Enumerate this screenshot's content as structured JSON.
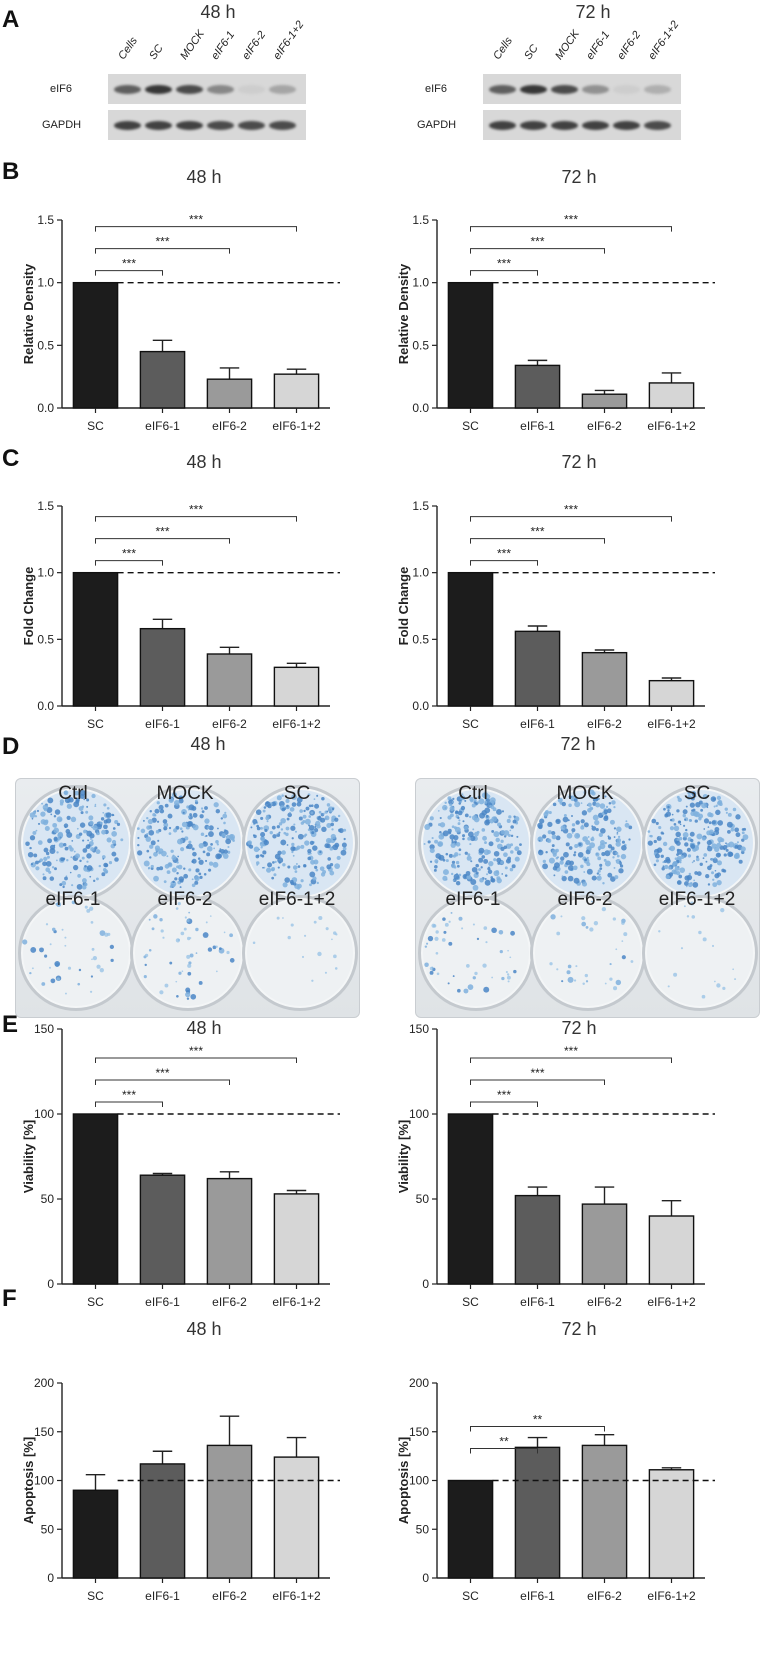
{
  "panel_labels": [
    "A",
    "B",
    "C",
    "D",
    "E",
    "F"
  ],
  "blots": [
    {
      "time": "48 h",
      "lanes": [
        "Cells",
        "SC",
        "MOCK",
        "eIF6-1",
        "eIF6-2",
        "eIF6-1+2"
      ],
      "rows": [
        {
          "label": "eIF6",
          "intensity": [
            0.7,
            0.9,
            0.8,
            0.5,
            0.15,
            0.35
          ]
        },
        {
          "label": "GAPDH",
          "intensity": [
            0.85,
            0.85,
            0.85,
            0.8,
            0.8,
            0.8
          ]
        }
      ]
    },
    {
      "time": "72 h",
      "lanes": [
        "Cells",
        "SC",
        "MOCK",
        "eIF6-1",
        "eIF6-2",
        "eIF6-1+2"
      ],
      "rows": [
        {
          "label": "eIF6",
          "intensity": [
            0.7,
            0.9,
            0.8,
            0.45,
            0.15,
            0.3
          ]
        },
        {
          "label": "GAPDH",
          "intensity": [
            0.85,
            0.85,
            0.85,
            0.85,
            0.85,
            0.8
          ]
        }
      ]
    }
  ],
  "plates": [
    {
      "time": "48 h",
      "wells": [
        "Ctrl",
        "MOCK",
        "SC",
        "eIF6-1",
        "eIF6-2",
        "eIF6-1+2"
      ],
      "colony_density": [
        0.8,
        0.75,
        0.9,
        0.08,
        0.12,
        0.0
      ]
    },
    {
      "time": "72 h",
      "wells": [
        "Ctrl",
        "MOCK",
        "SC",
        "eIF6-1",
        "eIF6-2",
        "eIF6-1+2"
      ],
      "colony_density": [
        0.95,
        0.8,
        0.95,
        0.1,
        0.05,
        0.0
      ]
    }
  ],
  "chart_data": [
    {
      "id": "B-48",
      "type": "bar",
      "title": "48 h",
      "ylabel": "Relative Density",
      "categories": [
        "SC",
        "eIF6-1",
        "eIF6-2",
        "eIF6-1+2"
      ],
      "values": [
        1.0,
        0.45,
        0.23,
        0.27
      ],
      "errors": [
        0,
        0.09,
        0.09,
        0.04
      ],
      "ylim": [
        0,
        1.5
      ],
      "yticks": [
        "0.0",
        "0.5",
        "1.0",
        "1.5"
      ],
      "yticks_values": [
        0,
        0.5,
        1.0,
        1.5
      ],
      "reference_line": 1.0,
      "colors": [
        "#1c1c1c",
        "#5c5c5c",
        "#9a9a9a",
        "#d6d6d6"
      ],
      "significance": [
        {
          "from": 0,
          "to": 1,
          "label": "***"
        },
        {
          "from": 0,
          "to": 2,
          "label": "***"
        },
        {
          "from": 0,
          "to": 3,
          "label": "***"
        }
      ]
    },
    {
      "id": "B-72",
      "type": "bar",
      "title": "72 h",
      "ylabel": "Relative Density",
      "categories": [
        "SC",
        "eIF6-1",
        "eIF6-2",
        "eIF6-1+2"
      ],
      "values": [
        1.0,
        0.34,
        0.11,
        0.2
      ],
      "errors": [
        0,
        0.04,
        0.03,
        0.08
      ],
      "ylim": [
        0,
        1.5
      ],
      "yticks": [
        "0.0",
        "0.5",
        "1.0",
        "1.5"
      ],
      "yticks_values": [
        0,
        0.5,
        1.0,
        1.5
      ],
      "reference_line": 1.0,
      "colors": [
        "#1c1c1c",
        "#5c5c5c",
        "#9a9a9a",
        "#d6d6d6"
      ],
      "significance": [
        {
          "from": 0,
          "to": 1,
          "label": "***"
        },
        {
          "from": 0,
          "to": 2,
          "label": "***"
        },
        {
          "from": 0,
          "to": 3,
          "label": "***"
        }
      ]
    },
    {
      "id": "C-48",
      "type": "bar",
      "title": "48 h",
      "ylabel": "Fold Change",
      "categories": [
        "SC",
        "eIF6-1",
        "eIF6-2",
        "eIF6-1+2"
      ],
      "values": [
        1.0,
        0.58,
        0.39,
        0.29
      ],
      "errors": [
        0,
        0.07,
        0.05,
        0.03
      ],
      "ylim": [
        0,
        1.5
      ],
      "yticks": [
        "0.0",
        "0.5",
        "1.0",
        "1.5"
      ],
      "yticks_values": [
        0,
        0.5,
        1.0,
        1.5
      ],
      "reference_line": 1.0,
      "colors": [
        "#1c1c1c",
        "#5c5c5c",
        "#9a9a9a",
        "#d6d6d6"
      ],
      "significance": [
        {
          "from": 0,
          "to": 1,
          "label": "***"
        },
        {
          "from": 0,
          "to": 2,
          "label": "***"
        },
        {
          "from": 0,
          "to": 3,
          "label": "***"
        }
      ]
    },
    {
      "id": "C-72",
      "type": "bar",
      "title": "72 h",
      "ylabel": "Fold Change",
      "categories": [
        "SC",
        "eIF6-1",
        "eIF6-2",
        "eIF6-1+2"
      ],
      "values": [
        1.0,
        0.56,
        0.4,
        0.19
      ],
      "errors": [
        0,
        0.04,
        0.02,
        0.02
      ],
      "ylim": [
        0,
        1.5
      ],
      "yticks": [
        "0.0",
        "0.5",
        "1.0",
        "1.5"
      ],
      "yticks_values": [
        0,
        0.5,
        1.0,
        1.5
      ],
      "reference_line": 1.0,
      "colors": [
        "#1c1c1c",
        "#5c5c5c",
        "#9a9a9a",
        "#d6d6d6"
      ],
      "significance": [
        {
          "from": 0,
          "to": 1,
          "label": "***"
        },
        {
          "from": 0,
          "to": 2,
          "label": "***"
        },
        {
          "from": 0,
          "to": 3,
          "label": "***"
        }
      ]
    },
    {
      "id": "E-48",
      "type": "bar",
      "title": "48 h",
      "ylabel": "Viability [%]",
      "categories": [
        "SC",
        "eIF6-1",
        "eIF6-2",
        "eIF6-1+2"
      ],
      "values": [
        100,
        64,
        62,
        53
      ],
      "errors": [
        0,
        1,
        4,
        2
      ],
      "ylim": [
        0,
        150
      ],
      "yticks": [
        "0",
        "50",
        "100",
        "150"
      ],
      "yticks_values": [
        0,
        50,
        100,
        150
      ],
      "reference_line": 100,
      "colors": [
        "#1c1c1c",
        "#5c5c5c",
        "#9a9a9a",
        "#d6d6d6"
      ],
      "significance": [
        {
          "from": 0,
          "to": 1,
          "label": "***"
        },
        {
          "from": 0,
          "to": 2,
          "label": "***"
        },
        {
          "from": 0,
          "to": 3,
          "label": "***"
        }
      ]
    },
    {
      "id": "E-72",
      "type": "bar",
      "title": "72 h",
      "ylabel": "Viability [%]",
      "categories": [
        "SC",
        "eIF6-1",
        "eIF6-2",
        "eIF6-1+2"
      ],
      "values": [
        100,
        52,
        47,
        40
      ],
      "errors": [
        0,
        5,
        10,
        9
      ],
      "ylim": [
        0,
        150
      ],
      "yticks": [
        "0",
        "50",
        "100",
        "150"
      ],
      "yticks_values": [
        0,
        50,
        100,
        150
      ],
      "reference_line": 100,
      "colors": [
        "#1c1c1c",
        "#5c5c5c",
        "#9a9a9a",
        "#d6d6d6"
      ],
      "significance": [
        {
          "from": 0,
          "to": 1,
          "label": "***"
        },
        {
          "from": 0,
          "to": 2,
          "label": "***"
        },
        {
          "from": 0,
          "to": 3,
          "label": "***"
        }
      ]
    },
    {
      "id": "F-48",
      "type": "bar",
      "title": "48 h",
      "ylabel": "Apoptosis [%]",
      "categories": [
        "SC",
        "eIF6-1",
        "eIF6-2",
        "eIF6-1+2"
      ],
      "values": [
        90,
        117,
        136,
        124
      ],
      "errors": [
        16,
        13,
        30,
        20
      ],
      "ylim": [
        0,
        200
      ],
      "yticks": [
        "0",
        "50",
        "100",
        "150",
        "200"
      ],
      "yticks_values": [
        0,
        50,
        100,
        150,
        200
      ],
      "reference_line": 100,
      "colors": [
        "#1c1c1c",
        "#5c5c5c",
        "#9a9a9a",
        "#d6d6d6"
      ],
      "significance": []
    },
    {
      "id": "F-72",
      "type": "bar",
      "title": "72 h",
      "ylabel": "Apoptosis [%]",
      "categories": [
        "SC",
        "eIF6-1",
        "eIF6-2",
        "eIF6-1+2"
      ],
      "values": [
        100,
        134,
        136,
        111
      ],
      "errors": [
        0,
        10,
        11,
        2
      ],
      "ylim": [
        0,
        200
      ],
      "yticks": [
        "0",
        "50",
        "100",
        "150",
        "200"
      ],
      "yticks_values": [
        0,
        50,
        100,
        150,
        200
      ],
      "reference_line": 100,
      "colors": [
        "#1c1c1c",
        "#5c5c5c",
        "#9a9a9a",
        "#d6d6d6"
      ],
      "significance": [
        {
          "from": 0,
          "to": 1,
          "label": "**"
        },
        {
          "from": 0,
          "to": 2,
          "label": "**"
        }
      ]
    }
  ]
}
